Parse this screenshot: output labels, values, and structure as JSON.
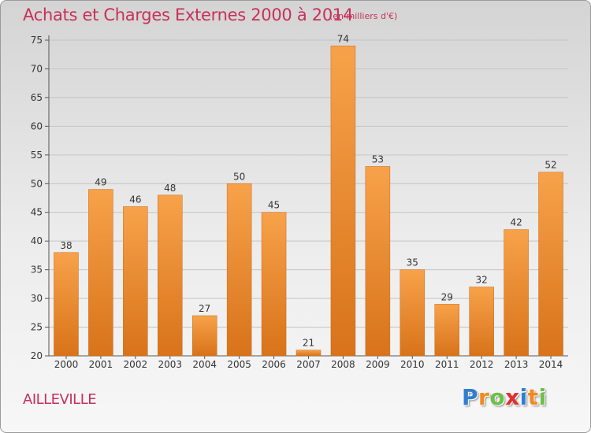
{
  "header": {
    "title": "Achats et Charges Externes 2000 à 2014",
    "subtitle": "(en milliers d'€)"
  },
  "footer": {
    "location": "AILLEVILLE",
    "logo_letters": [
      {
        "ch": "P",
        "color": "#2f7fd0"
      },
      {
        "ch": "r",
        "color": "#f08a1c"
      },
      {
        "ch": "o",
        "color": "#6cc04a"
      },
      {
        "ch": "x",
        "color": "#e0302f"
      },
      {
        "ch": "i",
        "color": "#2f7fd0"
      },
      {
        "ch": "t",
        "color": "#f08a1c"
      },
      {
        "ch": "i",
        "color": "#6cc04a"
      }
    ]
  },
  "colors": {
    "accent": "#c8305a",
    "bar_light": "#f7a24a",
    "bar_dark": "#d8731a"
  },
  "chart_data": {
    "type": "bar",
    "categories": [
      "2000",
      "2001",
      "2002",
      "2003",
      "2004",
      "2005",
      "2006",
      "2007",
      "2008",
      "2009",
      "2010",
      "2011",
      "2012",
      "2013",
      "2014"
    ],
    "values": [
      38,
      49,
      46,
      48,
      27,
      50,
      45,
      21,
      74,
      53,
      35,
      29,
      32,
      42,
      52
    ],
    "ylim": [
      20,
      75
    ],
    "yticks": [
      20,
      25,
      30,
      35,
      40,
      45,
      50,
      55,
      60,
      65,
      70,
      75
    ],
    "grid": true,
    "data_labels": true
  }
}
